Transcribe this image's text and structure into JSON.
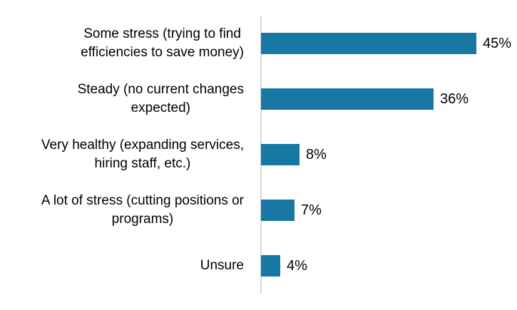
{
  "chart_data": {
    "type": "bar",
    "orientation": "horizontal",
    "title": "",
    "xlabel": "",
    "ylabel": "",
    "categories": [
      "Some stress (trying to find\nefficiencies to save money)",
      "Steady (no current changes\nexpected)",
      "Very healthy (expanding services,\nhiring staff, etc.)",
      "A lot of stress (cutting positions or\nprograms)",
      "Unsure"
    ],
    "values": [
      45,
      36,
      8,
      7,
      4
    ],
    "value_labels": [
      "45%",
      "36%",
      "8%",
      "7%",
      "4%"
    ],
    "xlim": [
      0,
      50
    ],
    "grid": false,
    "legend": false,
    "bar_color": "#1778A4",
    "axis_line_color": "#D9D9D9",
    "text_color": "#000000",
    "background_color": "#FFFFFF"
  }
}
